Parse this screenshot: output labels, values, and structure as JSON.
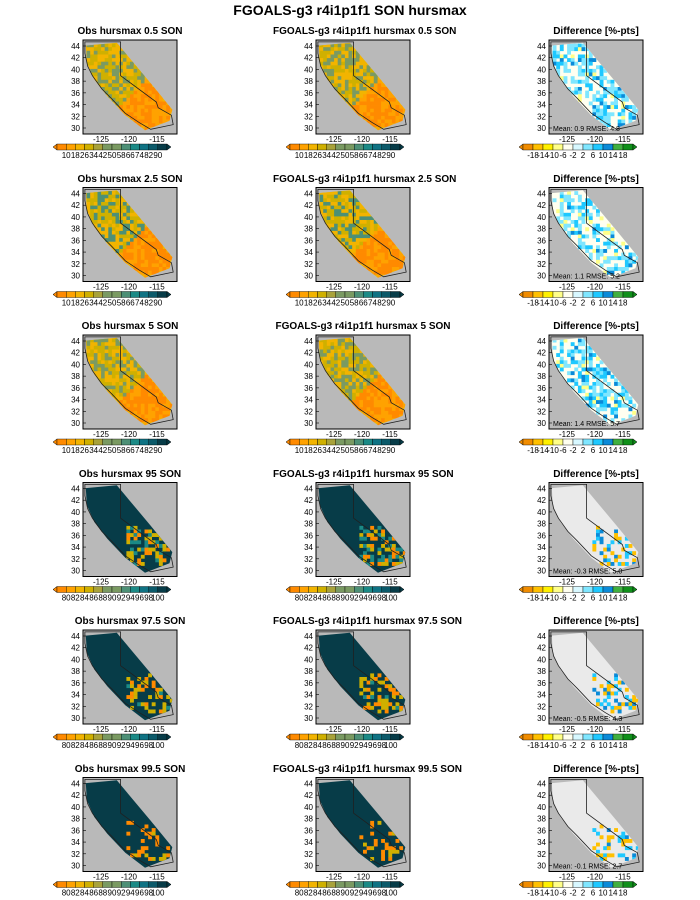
{
  "title": "FGOALS-g3 r4i1p1f1 SON hursmax",
  "lat_ticks": [
    "44",
    "42",
    "40",
    "38",
    "36",
    "34",
    "32",
    "30"
  ],
  "lon_ticks": [
    "-125",
    "-120",
    "-115"
  ],
  "colors": {
    "land": "#b9b9b9",
    "border": "#202020",
    "obs_ramp": [
      "#ff8a00",
      "#ffa200",
      "#f2b400",
      "#cfb000",
      "#a8a23a",
      "#7a9a62",
      "#4d9076",
      "#1b8a86",
      "#0f7384",
      "#0b5a6a",
      "#073c48"
    ],
    "diff_ramp": [
      "#f08c00",
      "#ffc000",
      "#fff000",
      "#ffff88",
      "#fffff0",
      "#eaeaea",
      "#d8f8ff",
      "#7fe6ff",
      "#1ec8ff",
      "#0a8ad8",
      "#40b040",
      "#10901a"
    ]
  },
  "rows": [
    {
      "obs_title": "Obs hursmax 0.5 SON",
      "model_title": "FGOALS-g3 r4i1p1f1 hursmax 0.5 SON",
      "diff_title": "Difference [%-pts]",
      "cb_labels": [
        "10",
        "18",
        "26",
        "34",
        "42",
        "50",
        "58",
        "66",
        "74",
        "82",
        "90"
      ],
      "stats": "Mean: 0.9  RMSE: 4.8"
    },
    {
      "obs_title": "Obs hursmax 2.5 SON",
      "model_title": "FGOALS-g3 r4i1p1f1 hursmax 2.5 SON",
      "diff_title": "Difference [%-pts]",
      "cb_labels": [
        "10",
        "18",
        "26",
        "34",
        "42",
        "50",
        "58",
        "66",
        "74",
        "82",
        "90"
      ],
      "stats": "Mean: 1.1  RMSE: 5.2"
    },
    {
      "obs_title": "Obs hursmax 5 SON",
      "model_title": "FGOALS-g3 r4i1p1f1 hursmax 5 SON",
      "diff_title": "Difference [%-pts]",
      "cb_labels": [
        "10",
        "18",
        "26",
        "34",
        "42",
        "50",
        "58",
        "66",
        "74",
        "82",
        "90"
      ],
      "stats": "Mean: 1.4  RMSE: 5.7"
    },
    {
      "obs_title": "Obs hursmax 95 SON",
      "model_title": "FGOALS-g3 r4i1p1f1 hursmax 95 SON",
      "diff_title": "Difference [%-pts]",
      "cb_labels": [
        "80",
        "82",
        "84",
        "86",
        "88",
        "90",
        "92",
        "94",
        "96",
        "98",
        "100"
      ],
      "stats": "Mean: -0.3  RMSE: 5.0"
    },
    {
      "obs_title": "Obs hursmax 97.5 SON",
      "model_title": "FGOALS-g3 r4i1p1f1 hursmax 97.5 SON",
      "diff_title": "Difference [%-pts]",
      "cb_labels": [
        "80",
        "82",
        "84",
        "86",
        "88",
        "90",
        "92",
        "94",
        "96",
        "98",
        "100"
      ],
      "stats": "Mean: -0.5  RMSE: 4.3"
    },
    {
      "obs_title": "Obs hursmax 99.5 SON",
      "model_title": "FGOALS-g3 r4i1p1f1 hursmax 99.5 SON",
      "diff_title": "Difference [%-pts]",
      "cb_labels": [
        "80",
        "82",
        "84",
        "86",
        "88",
        "90",
        "92",
        "94",
        "96",
        "98",
        "100"
      ],
      "stats": "Mean: -0.1  RMSE: 2.7"
    }
  ],
  "diff_cb_labels": [
    "-18",
    "-14",
    "-10",
    "-6",
    "-2",
    "2",
    "6",
    "10",
    "14",
    "18"
  ]
}
